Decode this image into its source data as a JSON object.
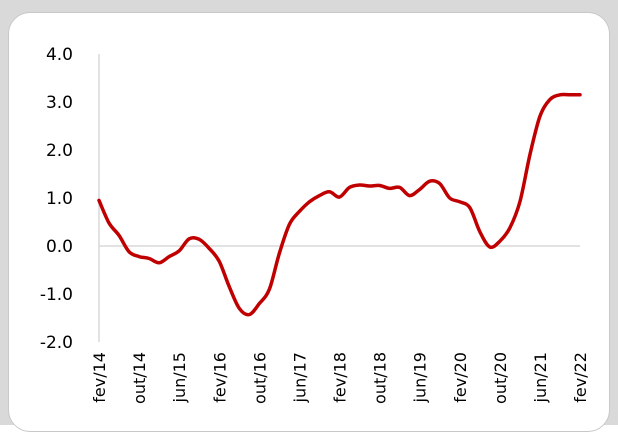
{
  "chart_data": {
    "type": "line",
    "title": "",
    "xlabel": "",
    "ylabel": "",
    "ylim": [
      -2.0,
      4.0
    ],
    "yticks": [
      4.0,
      3.0,
      2.0,
      1.0,
      0.0,
      -1.0,
      -2.0
    ],
    "ytick_labels": [
      "4.0",
      "3.0",
      "2.0",
      "1.0",
      "0.0",
      "-1.0",
      "-2.0"
    ],
    "x_range": [
      "2014-02",
      "2022-02"
    ],
    "xtick_labels": [
      "fev/14",
      "out/14",
      "jun/15",
      "fev/16",
      "out/16",
      "jun/17",
      "fev/18",
      "out/18",
      "jun/19",
      "fev/20",
      "out/20",
      "jun/21",
      "fev/22"
    ],
    "grid": false,
    "line_color": "#c00000",
    "series": [
      {
        "x": [
          "2014-02",
          "2014-04",
          "2014-06",
          "2014-08",
          "2014-10",
          "2014-12",
          "2015-02",
          "2015-04",
          "2015-06",
          "2015-08",
          "2015-10",
          "2015-12",
          "2016-02",
          "2016-04",
          "2016-06",
          "2016-08",
          "2016-10",
          "2016-12",
          "2017-02",
          "2017-04",
          "2017-06",
          "2017-08",
          "2017-10",
          "2017-12",
          "2018-02",
          "2018-04",
          "2018-06",
          "2018-08",
          "2018-10",
          "2018-12",
          "2019-02",
          "2019-04",
          "2019-06",
          "2019-08",
          "2019-10",
          "2019-12",
          "2020-02",
          "2020-04",
          "2020-06",
          "2020-08",
          "2020-10",
          "2020-12",
          "2021-02",
          "2021-04",
          "2021-06",
          "2021-08",
          "2021-10",
          "2021-12",
          "2022-02"
        ],
        "values": [
          0.95,
          0.48,
          0.22,
          -0.12,
          -0.22,
          -0.26,
          -0.35,
          -0.22,
          -0.1,
          0.15,
          0.14,
          -0.05,
          -0.32,
          -0.85,
          -1.3,
          -1.43,
          -1.2,
          -0.9,
          -0.15,
          0.45,
          0.72,
          0.92,
          1.05,
          1.13,
          1.02,
          1.22,
          1.27,
          1.25,
          1.26,
          1.2,
          1.22,
          1.05,
          1.18,
          1.35,
          1.3,
          1.0,
          0.92,
          0.8,
          0.3,
          -0.02,
          0.1,
          0.38,
          0.92,
          1.9,
          2.7,
          3.05,
          3.15,
          3.15,
          3.15
        ]
      }
    ]
  }
}
